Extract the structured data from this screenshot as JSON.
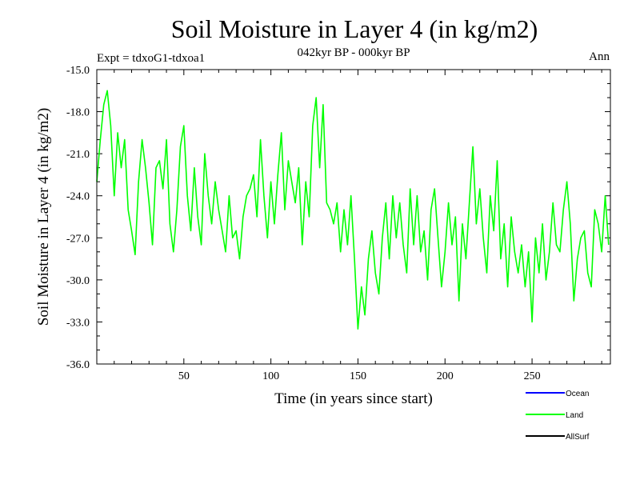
{
  "chart_data": {
    "type": "line",
    "title": "Soil Moisture in Layer 4 (in kg/m2)",
    "subtitle": "042kyr BP - 000kyr BP",
    "experiment": "Expt = tdxoG1-tdxoa1",
    "season": "Ann",
    "xlabel": "Time (in years since start)",
    "ylabel": "Soil Moisture in Layer 4 (in kg/m2)",
    "xlim": [
      0,
      295
    ],
    "ylim": [
      -36.0,
      -15.0
    ],
    "x_ticks": [
      50,
      100,
      150,
      200,
      250
    ],
    "x_tick_labels": [
      "50",
      "100",
      "150",
      "200",
      "250"
    ],
    "y_ticks": [
      -36.0,
      -33.0,
      -30.0,
      -27.0,
      -24.0,
      -21.0,
      -18.0,
      -15.0
    ],
    "y_tick_labels": [
      "-36.0",
      "-33.0",
      "-30.0",
      "-27.0",
      "-24.0",
      "-21.0",
      "-18.0",
      "-15.0"
    ],
    "legend": [
      {
        "name": "Ocean",
        "color": "#0000ff"
      },
      {
        "name": "Land",
        "color": "#00ff00"
      },
      {
        "name": "AllSurf",
        "color": "#000000"
      }
    ],
    "series": [
      {
        "name": "Land",
        "color": "#00ff00",
        "x": [
          0,
          2,
          4,
          6,
          8,
          10,
          12,
          14,
          16,
          18,
          20,
          22,
          24,
          26,
          28,
          30,
          32,
          34,
          36,
          38,
          40,
          42,
          44,
          46,
          48,
          50,
          52,
          54,
          56,
          58,
          60,
          62,
          64,
          66,
          68,
          70,
          72,
          74,
          76,
          78,
          80,
          82,
          84,
          86,
          88,
          90,
          92,
          94,
          96,
          98,
          100,
          102,
          104,
          106,
          108,
          110,
          112,
          114,
          116,
          118,
          120,
          122,
          124,
          126,
          128,
          130,
          132,
          134,
          136,
          138,
          140,
          142,
          144,
          146,
          148,
          150,
          152,
          154,
          156,
          158,
          160,
          162,
          164,
          166,
          168,
          170,
          172,
          174,
          176,
          178,
          180,
          182,
          184,
          186,
          188,
          190,
          192,
          194,
          196,
          198,
          200,
          202,
          204,
          206,
          208,
          210,
          212,
          214,
          216,
          218,
          220,
          222,
          224,
          226,
          228,
          230,
          232,
          234,
          236,
          238,
          240,
          242,
          244,
          246,
          248,
          250,
          252,
          254,
          256,
          258,
          260,
          262,
          264,
          266,
          268,
          270,
          272,
          274,
          276,
          278,
          280,
          282,
          284,
          286,
          288,
          290,
          292,
          294
        ],
        "values": [
          -23.0,
          -20.0,
          -17.5,
          -16.5,
          -19.0,
          -24.0,
          -19.5,
          -22.0,
          -20.0,
          -25.0,
          -26.5,
          -28.2,
          -23.0,
          -20.0,
          -22.0,
          -24.5,
          -27.5,
          -22.0,
          -21.5,
          -23.5,
          -20.0,
          -26.0,
          -28.0,
          -25.0,
          -20.5,
          -19.0,
          -24.0,
          -26.5,
          -22.0,
          -25.5,
          -27.5,
          -21.0,
          -24.0,
          -26.0,
          -23.0,
          -25.0,
          -26.5,
          -28.0,
          -24.0,
          -27.0,
          -26.5,
          -28.5,
          -25.5,
          -24.0,
          -23.5,
          -22.5,
          -25.5,
          -20.0,
          -24.0,
          -27.0,
          -23.0,
          -26.0,
          -22.5,
          -19.5,
          -25.0,
          -21.5,
          -23.0,
          -24.5,
          -22.0,
          -27.5,
          -23.0,
          -25.5,
          -19.0,
          -17.0,
          -22.0,
          -17.5,
          -24.5,
          -25.0,
          -26.0,
          -24.5,
          -28.0,
          -25.0,
          -27.5,
          -24.0,
          -28.5,
          -33.5,
          -30.5,
          -32.5,
          -28.5,
          -26.5,
          -29.5,
          -31.0,
          -27.0,
          -24.5,
          -28.5,
          -24.0,
          -27.0,
          -24.5,
          -27.5,
          -29.5,
          -23.5,
          -27.5,
          -24.0,
          -28.0,
          -26.5,
          -30.0,
          -25.0,
          -23.5,
          -27.0,
          -30.5,
          -28.0,
          -24.5,
          -27.5,
          -25.5,
          -31.5,
          -26.0,
          -28.5,
          -24.5,
          -20.5,
          -26.0,
          -23.5,
          -27.0,
          -29.5,
          -24.0,
          -26.5,
          -21.5,
          -28.5,
          -26.0,
          -30.5,
          -25.5,
          -28.0,
          -29.5,
          -27.5,
          -30.5,
          -28.0,
          -33.0,
          -27.0,
          -29.5,
          -26.0,
          -30.0,
          -28.0,
          -24.5,
          -27.5,
          -28.0,
          -25.0,
          -23.0,
          -26.0,
          -31.5,
          -28.5,
          -27.0,
          -26.5,
          -29.5,
          -30.5,
          -25.0,
          -26.0,
          -28.0,
          -24.0,
          -27.5
        ]
      }
    ]
  }
}
